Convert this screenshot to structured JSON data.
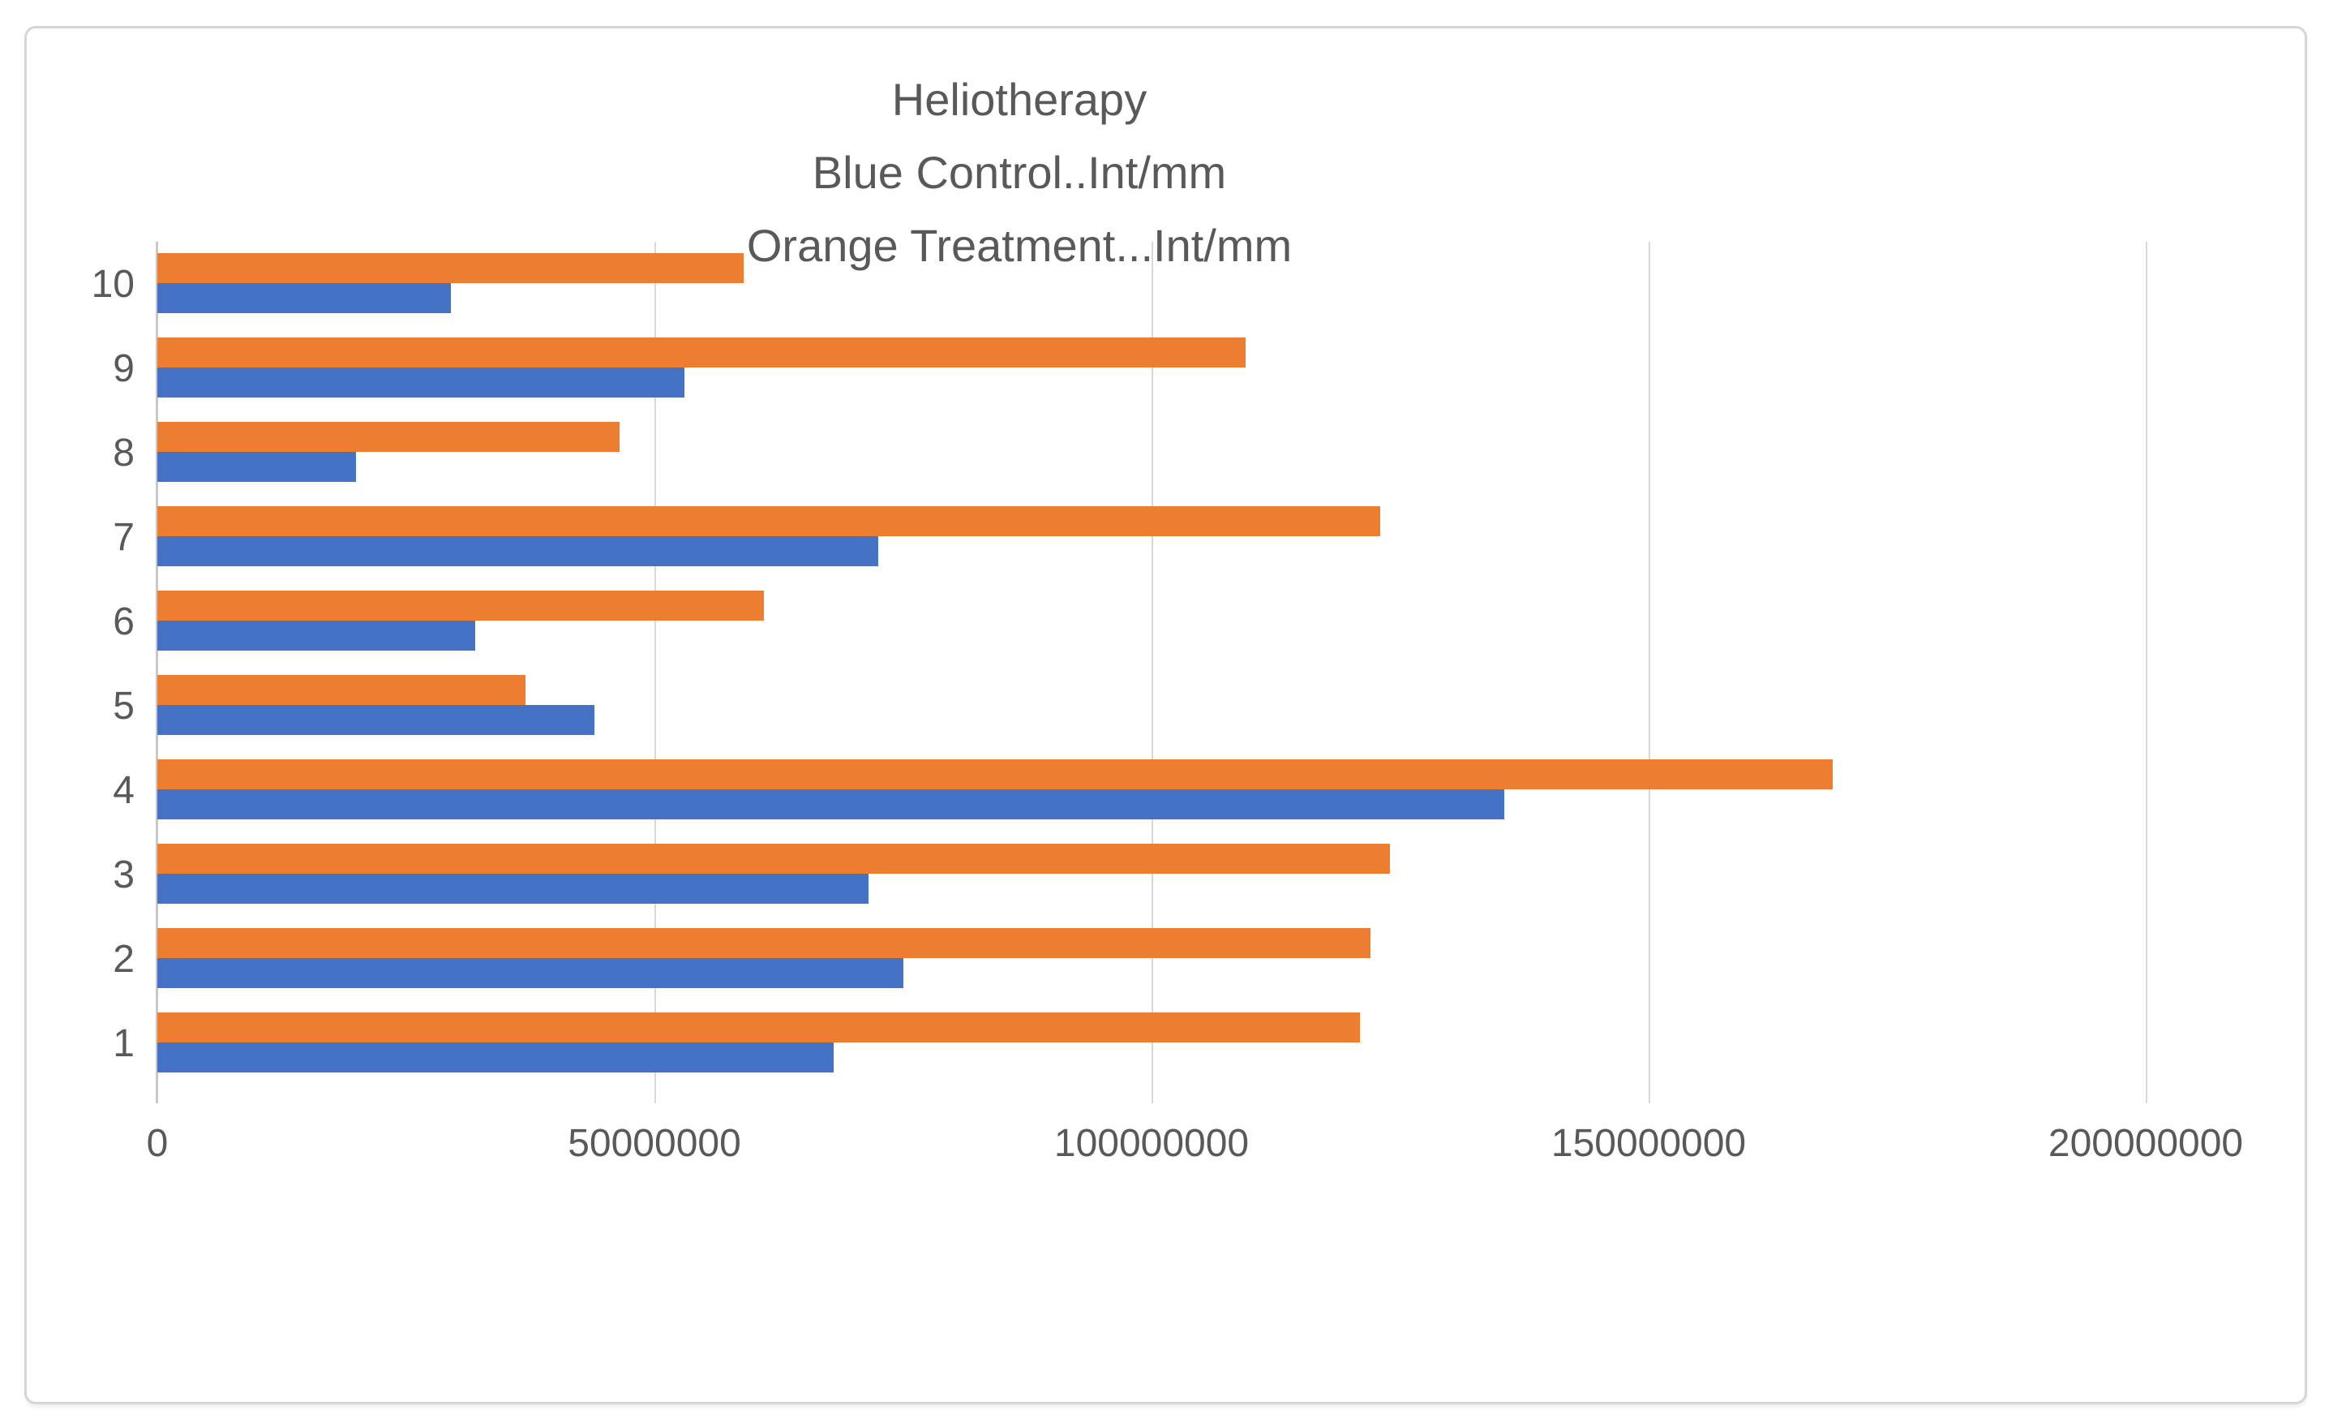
{
  "chart_data": {
    "type": "bar",
    "orientation": "horizontal",
    "title_lines": [
      "Heliotherapy",
      "Blue Control..Int/mm",
      "Orange Treatment...Int/mm"
    ],
    "categories": [
      "10",
      "9",
      "8",
      "7",
      "6",
      "5",
      "4",
      "3",
      "2",
      "1"
    ],
    "series": [
      {
        "name": "Treatment",
        "color": "#ED7D31",
        "values": [
          59000000,
          109500000,
          46500000,
          123000000,
          61000000,
          37000000,
          168500000,
          124000000,
          122000000,
          121000000
        ]
      },
      {
        "name": "Control",
        "color": "#4472C4",
        "values": [
          29500000,
          53000000,
          20000000,
          72500000,
          32000000,
          44000000,
          135500000,
          71500000,
          75000000,
          68000000
        ]
      }
    ],
    "xlim": [
      0,
      200000000
    ],
    "x_ticks": [
      0,
      50000000,
      100000000,
      150000000,
      200000000
    ],
    "x_tick_labels": [
      "0",
      "50000000",
      "100000000",
      "150000000",
      "200000000"
    ],
    "ylabel": "",
    "xlabel": "",
    "grid": "vertical",
    "legend_position": "none"
  },
  "colors": {
    "title_text": "#595959",
    "axis_text": "#595959",
    "gridline": "#D9D9D9",
    "axis_line": "#C9C9C9",
    "frame_border": "#D6D6D6",
    "background": "#FFFFFF"
  }
}
